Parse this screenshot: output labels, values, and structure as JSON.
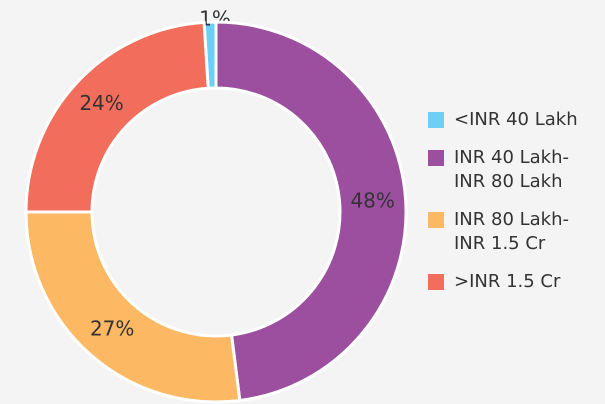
{
  "chart_data": {
    "type": "donut",
    "categories": [
      "<INR 40 Lakh",
      "INR 40 Lakh-INR 80 Lakh",
      "INR 80 Lakh-INR 1.5 Cr",
      ">INR 1.5 Cr"
    ],
    "values": [
      1,
      48,
      27,
      24
    ],
    "value_labels": [
      "1%",
      "48%",
      "27%",
      "24%"
    ],
    "colors": [
      "#6dcff6",
      "#9c4f9f",
      "#fdb863",
      "#f26d5b"
    ],
    "legend": "right"
  }
}
